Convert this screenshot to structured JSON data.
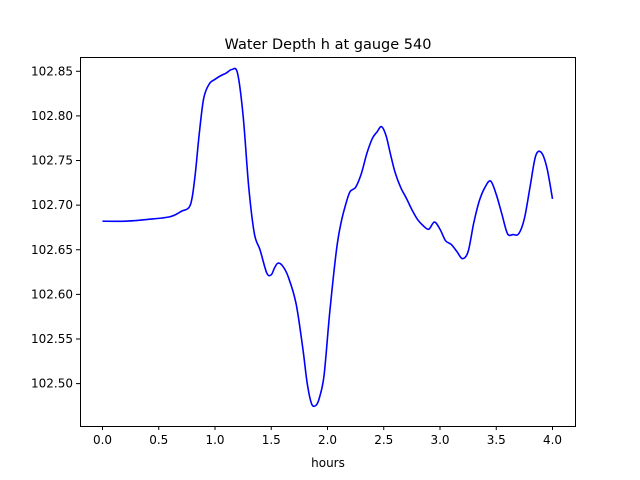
{
  "chart_data": {
    "type": "line",
    "title": "Water Depth h at gauge 540",
    "xlabel": "hours",
    "ylabel": "",
    "xlim": [
      -0.2,
      4.2
    ],
    "ylim": [
      102.4525,
      102.866
    ],
    "xticks": [
      0.0,
      0.5,
      1.0,
      1.5,
      2.0,
      2.5,
      3.0,
      3.5,
      4.0
    ],
    "xtick_labels": [
      "0.0",
      "0.5",
      "1.0",
      "1.5",
      "2.0",
      "2.5",
      "3.0",
      "3.5",
      "4.0"
    ],
    "yticks": [
      102.5,
      102.55,
      102.6,
      102.65,
      102.7,
      102.75,
      102.8,
      102.85
    ],
    "ytick_labels": [
      "102.50",
      "102.55",
      "102.60",
      "102.65",
      "102.70",
      "102.75",
      "102.80",
      "102.85"
    ],
    "grid": false,
    "line_color": "#0000ff",
    "series": [
      {
        "x": [
          0.0,
          0.2,
          0.4,
          0.6,
          0.7,
          0.78,
          0.82,
          0.86,
          0.9,
          0.95,
          1.0,
          1.05,
          1.1,
          1.15,
          1.2,
          1.25,
          1.3,
          1.35,
          1.4,
          1.46,
          1.5,
          1.53,
          1.56,
          1.6,
          1.65,
          1.72,
          1.78,
          1.82,
          1.86,
          1.9,
          1.93,
          1.97,
          2.02,
          2.08,
          2.12,
          2.16,
          2.2,
          2.25,
          2.3,
          2.35,
          2.4,
          2.44,
          2.48,
          2.52,
          2.56,
          2.6,
          2.65,
          2.7,
          2.75,
          2.8,
          2.85,
          2.9,
          2.95,
          3.0,
          3.05,
          3.1,
          3.15,
          3.2,
          3.25,
          3.3,
          3.35,
          3.4,
          3.45,
          3.5,
          3.55,
          3.6,
          3.65,
          3.7,
          3.75,
          3.8,
          3.85,
          3.9,
          3.95,
          4.0
        ],
        "values": [
          102.682,
          102.682,
          102.684,
          102.687,
          102.693,
          102.7,
          102.73,
          102.78,
          102.82,
          102.836,
          102.841,
          102.845,
          102.848,
          102.852,
          102.848,
          102.8,
          102.72,
          102.668,
          102.65,
          102.624,
          102.622,
          102.63,
          102.635,
          102.632,
          102.62,
          102.59,
          102.54,
          102.5,
          102.477,
          102.476,
          102.485,
          102.51,
          102.58,
          102.65,
          102.68,
          102.7,
          102.715,
          102.72,
          102.735,
          102.758,
          102.775,
          102.782,
          102.788,
          102.778,
          102.757,
          102.737,
          102.72,
          102.708,
          102.695,
          102.684,
          102.677,
          102.673,
          102.681,
          102.673,
          102.66,
          102.656,
          102.648,
          102.64,
          102.648,
          102.68,
          102.705,
          102.72,
          102.727,
          102.712,
          102.69,
          102.668,
          102.667,
          102.668,
          102.685,
          102.72,
          102.755,
          102.759,
          102.742,
          102.707
        ]
      }
    ]
  }
}
